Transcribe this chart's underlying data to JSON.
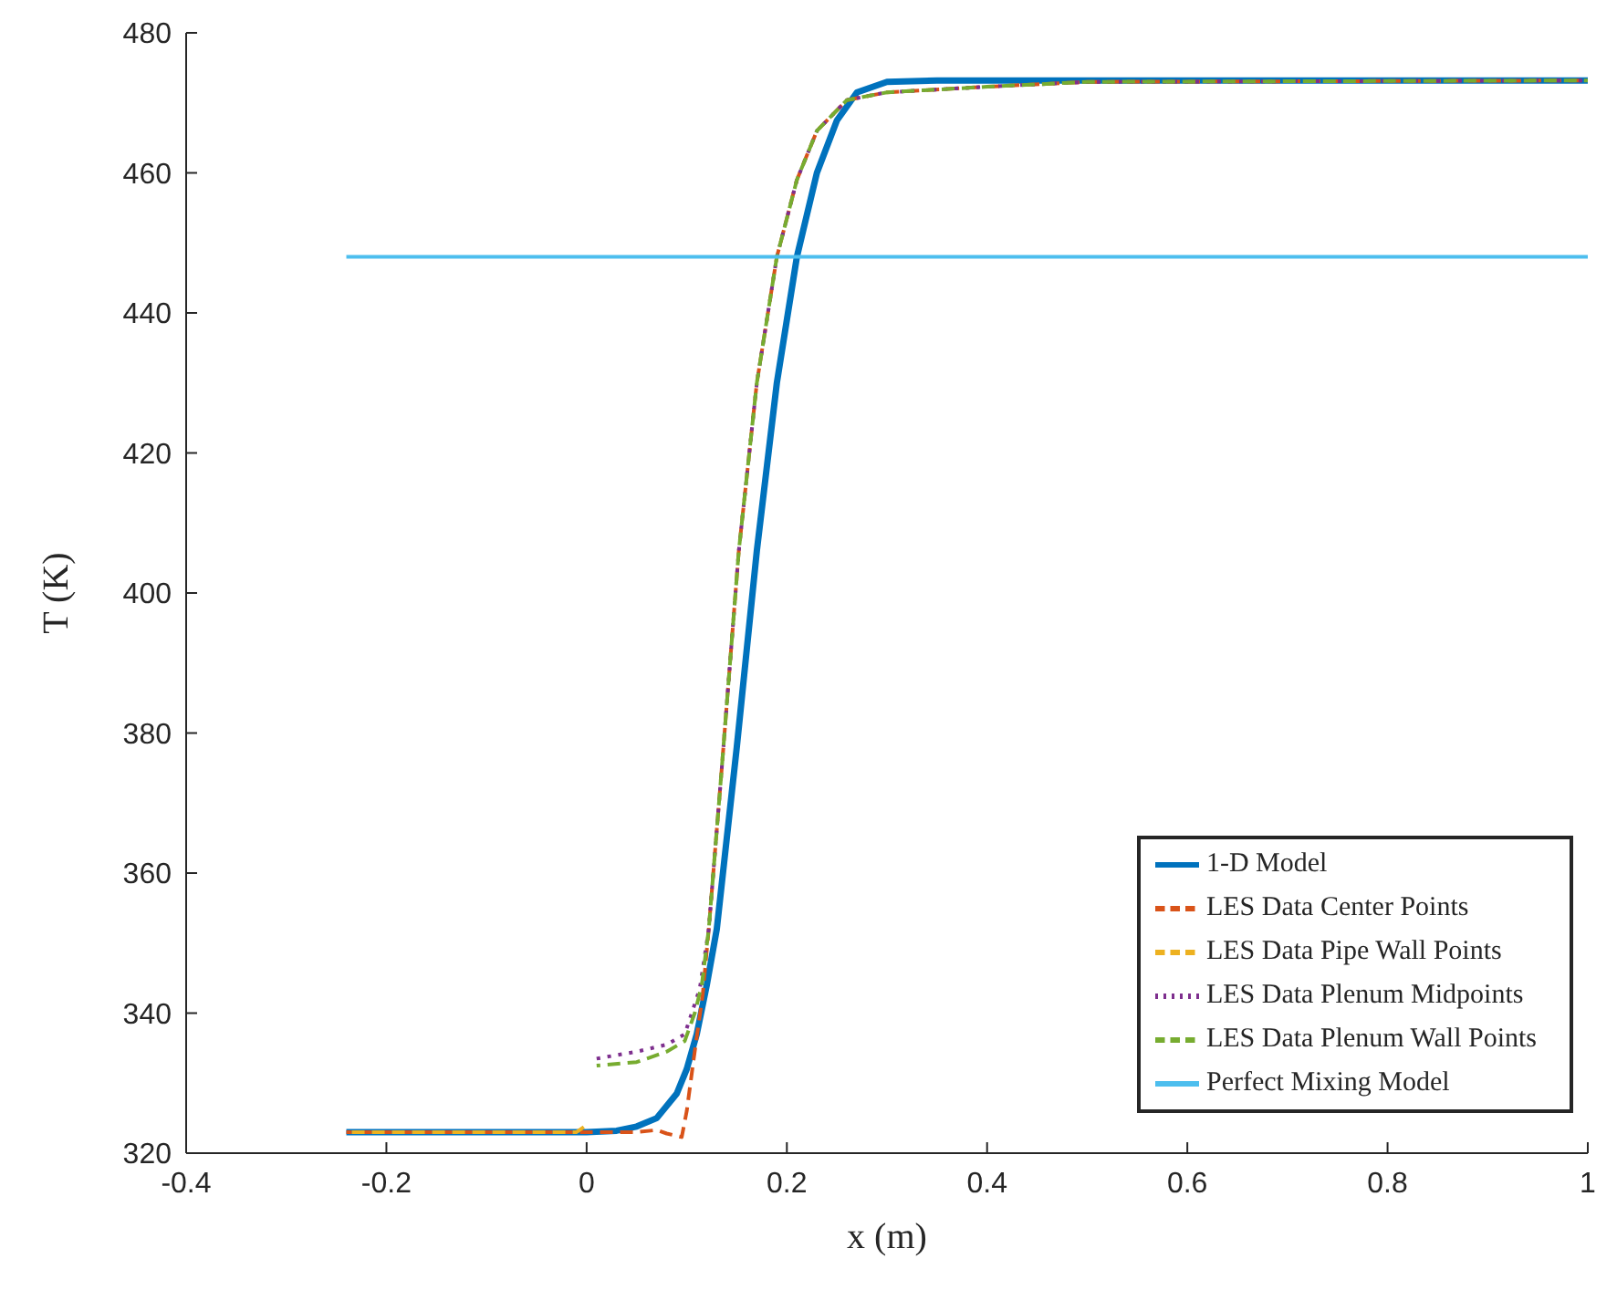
{
  "chart_data": {
    "type": "line",
    "xlabel": "x (m)",
    "ylabel": "T (K)",
    "xlim": [
      -0.4,
      1
    ],
    "xticks": [
      -0.4,
      -0.2,
      0,
      0.2,
      0.4,
      0.6,
      0.8,
      1
    ],
    "ylim": [
      320,
      480
    ],
    "yticks": [
      320,
      340,
      360,
      380,
      400,
      420,
      440,
      460,
      480
    ],
    "grid": false,
    "legend": "bottom right",
    "marker": "none",
    "series": [
      {
        "name": "1-D Model",
        "color": "#0072bd",
        "line_style": "solid",
        "x": [
          -0.24,
          0.0,
          0.03,
          0.05,
          0.07,
          0.09,
          0.1,
          0.11,
          0.12,
          0.13,
          0.15,
          0.17,
          0.19,
          0.21,
          0.23,
          0.25,
          0.27,
          0.3,
          0.35,
          1.0
        ],
        "values": [
          323,
          323,
          323.2,
          323.8,
          325,
          328.5,
          332,
          337,
          344,
          352,
          378,
          406,
          430,
          448,
          460,
          467.5,
          471.5,
          473,
          473.2,
          473.2
        ]
      },
      {
        "name": "LES Data Center Points",
        "color": "#d95319",
        "line_style": "dashed",
        "x": [
          -0.24,
          0.05,
          0.07,
          0.08,
          0.095,
          0.1,
          0.107,
          0.116,
          0.122,
          0.135,
          0.152,
          0.17,
          0.19,
          0.21,
          0.23,
          0.26,
          0.3,
          0.4,
          0.5,
          1.0
        ],
        "values": [
          323,
          323,
          323.3,
          322.8,
          322.3,
          326,
          333.5,
          342.7,
          352,
          375,
          406,
          430,
          448,
          459,
          466,
          470.4,
          471.5,
          472.3,
          473,
          473.2
        ]
      },
      {
        "name": "LES Data Pipe Wall Points",
        "color": "#edb120",
        "line_style": "dashed",
        "x": [
          -0.24,
          -0.01,
          0.0
        ],
        "values": [
          323,
          323,
          324
        ]
      },
      {
        "name": "LES Data Plenum Midpoints",
        "color": "#7e2f8e",
        "line_style": "dotted",
        "x": [
          0.01,
          0.05,
          0.08,
          0.098,
          0.105,
          0.113,
          0.122,
          0.135,
          0.152,
          0.17,
          0.19,
          0.21,
          0.23,
          0.26,
          0.3,
          0.4,
          0.5,
          1.0
        ],
        "values": [
          333.5,
          334.5,
          335.5,
          337,
          340,
          343.5,
          352,
          375,
          406,
          430,
          448,
          459,
          466,
          470.4,
          471.5,
          472.3,
          473,
          473.2
        ]
      },
      {
        "name": "LES Data Plenum Wall Points",
        "color": "#77ac30",
        "line_style": "dashed",
        "x": [
          0.01,
          0.05,
          0.08,
          0.098,
          0.108,
          0.115,
          0.122,
          0.135,
          0.152,
          0.17,
          0.19,
          0.21,
          0.23,
          0.26,
          0.3,
          0.4,
          0.5,
          1.0
        ],
        "values": [
          332.5,
          333,
          334.5,
          336,
          340,
          344,
          352,
          375,
          406,
          430,
          448,
          459,
          466,
          470.4,
          471.5,
          472.3,
          473,
          473.2
        ]
      },
      {
        "name": "Perfect Mixing Model",
        "color": "#4dbeee",
        "line_style": "solid",
        "x": [
          -0.24,
          1.0
        ],
        "values": [
          448,
          448
        ]
      }
    ]
  }
}
